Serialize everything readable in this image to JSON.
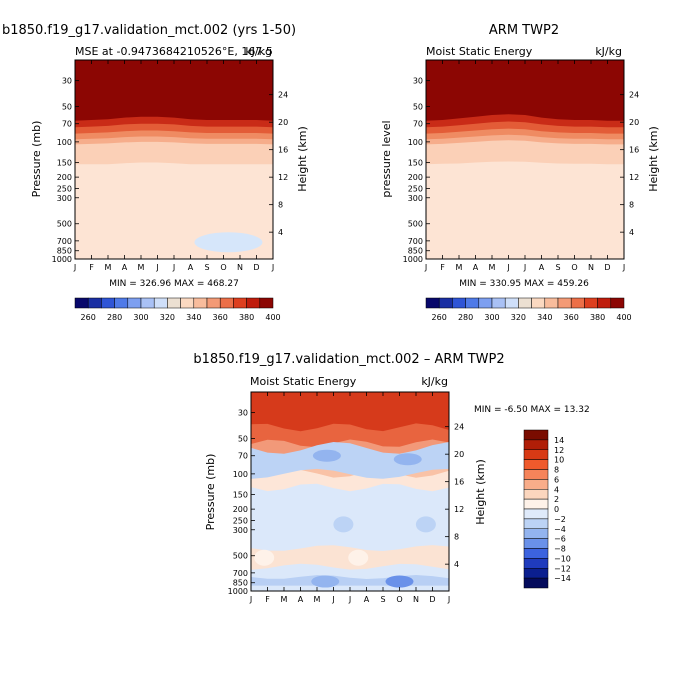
{
  "chart_data": [
    {
      "type": "heatmap",
      "title": "b1850.f19_g17.validation_mct.002 (yrs 1-50)",
      "subtitle_left": "MSE at -0.9473684210526°E, 167.5",
      "units": "kJ/kg",
      "xlabel": "",
      "ylabel": "Pressure (mb)",
      "y2label": "Height (km)",
      "x_ticks": [
        "J",
        "F",
        "M",
        "A",
        "M",
        "J",
        "J",
        "A",
        "S",
        "O",
        "N",
        "D",
        "J"
      ],
      "y_ticks": [
        30,
        50,
        70,
        100,
        150,
        200,
        250,
        300,
        500,
        700,
        850,
        1000
      ],
      "y2_ticks": [
        24,
        20,
        16,
        12,
        8,
        4
      ],
      "ylim": [
        1000,
        20
      ],
      "stats": "MIN = 326.96  MAX = 468.27",
      "contour_levels": [
        260,
        270,
        280,
        290,
        300,
        310,
        320,
        330,
        340,
        350,
        360,
        370,
        380,
        390,
        400
      ],
      "boundaries": [
        {
          "level": 350,
          "y": [
            155,
            155,
            155,
            152,
            150,
            150,
            152,
            155,
            155,
            155,
            155,
            155,
            155
          ]
        },
        {
          "level": 360,
          "y": [
            105,
            104,
            103,
            101,
            100,
            100,
            101,
            103,
            104,
            104,
            104,
            104,
            105
          ]
        },
        {
          "level": 370,
          "y": [
            95,
            94,
            93,
            91,
            90,
            90,
            91,
            93,
            94,
            94,
            94,
            94,
            95
          ]
        },
        {
          "level": 380,
          "y": [
            85,
            84,
            83,
            81,
            80,
            80,
            81,
            83,
            84,
            84,
            84,
            84,
            85
          ]
        },
        {
          "level": 390,
          "y": [
            75,
            74,
            73,
            71,
            70,
            70,
            71,
            73,
            74,
            74,
            74,
            74,
            75
          ]
        },
        {
          "level": 400,
          "y": [
            66,
            65,
            64,
            62,
            61,
            61,
            62,
            64,
            65,
            65,
            65,
            65,
            66
          ]
        }
      ],
      "anomaly_zones": [
        {
          "level": 330,
          "month": 9.3,
          "pressure": 720
        }
      ]
    },
    {
      "type": "heatmap",
      "title": "ARM TWP2",
      "subtitle_left": "Moist Static Energy",
      "units": "kJ/kg",
      "ylabel": "pressure level",
      "y2label": "Height (km)",
      "x_ticks": [
        "J",
        "F",
        "M",
        "A",
        "M",
        "J",
        "J",
        "A",
        "S",
        "O",
        "N",
        "D",
        "J"
      ],
      "y_ticks": [
        30,
        50,
        70,
        100,
        150,
        200,
        250,
        300,
        500,
        700,
        850,
        1000
      ],
      "y2_ticks": [
        24,
        20,
        16,
        12,
        8,
        4
      ],
      "ylim": [
        1000,
        20
      ],
      "stats": "MIN = 330.95  MAX = 459.26",
      "contour_levels": [
        260,
        270,
        280,
        290,
        300,
        310,
        320,
        330,
        340,
        350,
        360,
        370,
        380,
        390,
        400
      ],
      "boundaries": [
        {
          "level": 350,
          "y": [
            155,
            154,
            153,
            150,
            148,
            147,
            148,
            151,
            153,
            154,
            154,
            155,
            155
          ]
        },
        {
          "level": 360,
          "y": [
            105,
            104,
            102,
            100,
            98,
            97,
            98,
            101,
            103,
            104,
            104,
            105,
            105
          ]
        },
        {
          "level": 370,
          "y": [
            95,
            94,
            92,
            90,
            88,
            87,
            88,
            91,
            93,
            94,
            94,
            95,
            95
          ]
        },
        {
          "level": 380,
          "y": [
            85,
            84,
            82,
            80,
            78,
            77,
            78,
            81,
            83,
            84,
            84,
            85,
            85
          ]
        },
        {
          "level": 390,
          "y": [
            75,
            74,
            72,
            70,
            68,
            67,
            68,
            71,
            73,
            74,
            74,
            75,
            75
          ]
        },
        {
          "level": 400,
          "y": [
            66,
            65,
            63,
            61,
            59,
            58,
            59,
            62,
            64,
            65,
            65,
            66,
            66
          ]
        }
      ]
    },
    {
      "type": "heatmap",
      "title": "b1850.f19_g17.validation_mct.002 – ARM TWP2",
      "subtitle_left": "Moist Static Energy",
      "units": "kJ/kg",
      "ylabel": "Pressure (mb)",
      "y2label": "Height (km)",
      "x_ticks": [
        "J",
        "F",
        "M",
        "A",
        "M",
        "J",
        "J",
        "A",
        "S",
        "O",
        "N",
        "D",
        "J"
      ],
      "y_ticks": [
        30,
        50,
        70,
        100,
        150,
        200,
        250,
        300,
        500,
        700,
        850,
        1000
      ],
      "y2_ticks": [
        24,
        20,
        16,
        12,
        8,
        4
      ],
      "ylim": [
        1000,
        20
      ],
      "stats": "MIN =   -6.50  MAX =   13.32",
      "contour_levels": [
        -14,
        -12,
        -10,
        -8,
        -6,
        -4,
        -2,
        0,
        2,
        4,
        6,
        8,
        10,
        12,
        14
      ],
      "blobs": [
        {
          "level": -4,
          "month": 4.6,
          "pressure": 70
        },
        {
          "level": -4,
          "month": 9.5,
          "pressure": 75
        },
        {
          "level": -2,
          "month": 5.6,
          "pressure": 270
        },
        {
          "level": -2,
          "month": 10.6,
          "pressure": 270
        },
        {
          "level": 2,
          "month": 6.5,
          "pressure": 520
        },
        {
          "level": 2,
          "month": 0.8,
          "pressure": 520
        },
        {
          "level": -4,
          "month": 4.5,
          "pressure": 830
        },
        {
          "level": -6,
          "month": 9.0,
          "pressure": 830
        }
      ]
    }
  ],
  "colorbars": {
    "top_labels": [
      "260",
      "280",
      "300",
      "320",
      "340",
      "360",
      "380",
      "400"
    ],
    "diff_labels": [
      "14",
      "12",
      "10",
      "8",
      "6",
      "4",
      "2",
      "0",
      "−2",
      "−4",
      "−6",
      "−8",
      "−10",
      "−12",
      "−14"
    ],
    "mse_colors": [
      "#08086b",
      "#1a2fa3",
      "#2f55d6",
      "#4f7ae8",
      "#7d9ff0",
      "#a9c1f5",
      "#cfdff9",
      "#ece0d2",
      "#fbd9c1",
      "#f8bc9c",
      "#f39a76",
      "#ec6f48",
      "#dd3f1f",
      "#bf1c0c",
      "#8c0603"
    ],
    "diff_colors": [
      "#7a0c00",
      "#b01e07",
      "#d83a15",
      "#ef5a2c",
      "#f6845a",
      "#f9ad8a",
      "#fbd6be",
      "#fef2e9",
      "#dfeafa",
      "#bcd3f5",
      "#93b4ef",
      "#6a91e9",
      "#3c63df",
      "#1f3bbd",
      "#0b1f8f",
      "#040b5c"
    ]
  }
}
